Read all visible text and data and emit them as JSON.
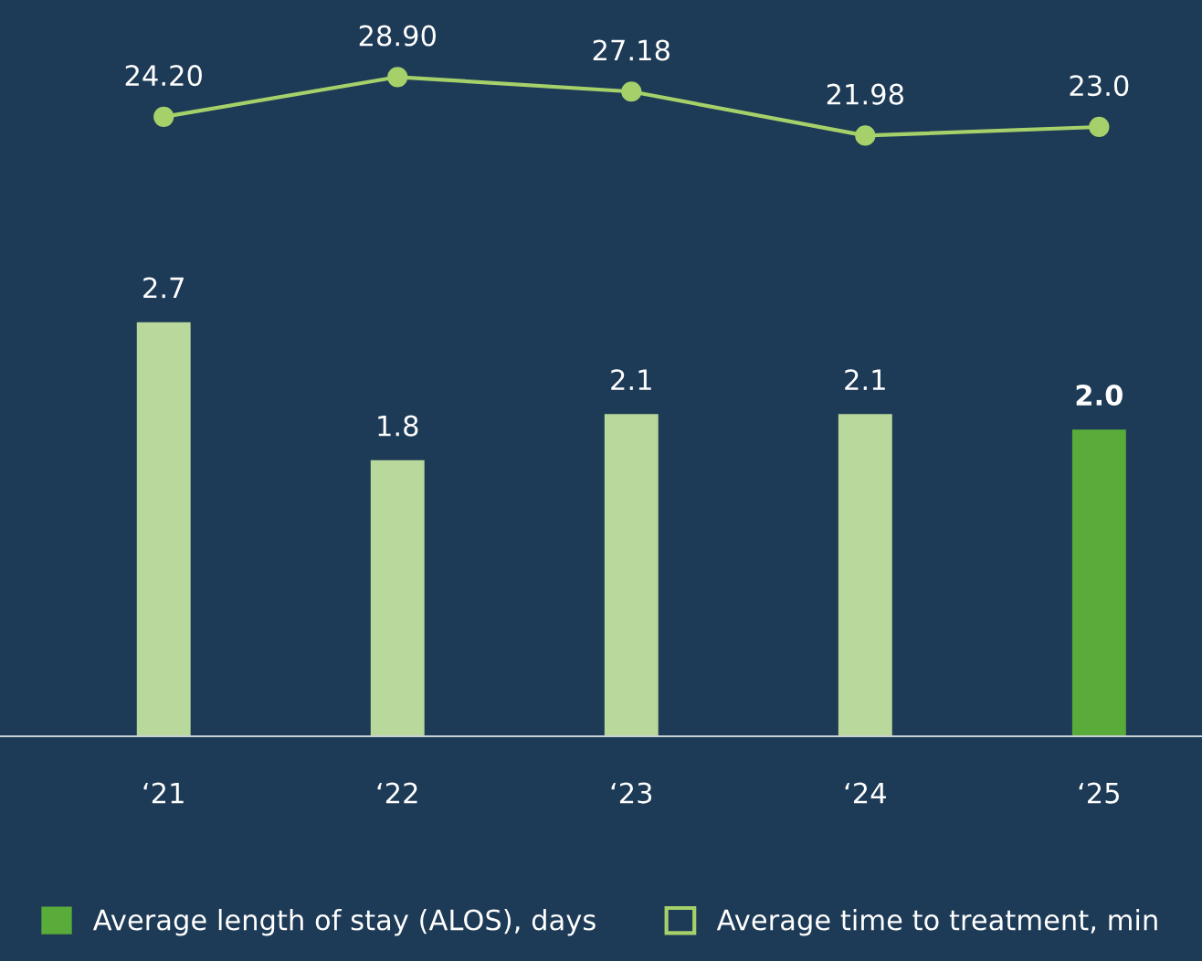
{
  "chart_data": {
    "type": "bar",
    "categories": [
      "‘21",
      "‘22",
      "‘23",
      "‘24",
      "‘25"
    ],
    "series": [
      {
        "name": "Average length of stay (ALOS), days",
        "colors": [
          "#b9d89b",
          "#b9d89b",
          "#b9d89b",
          "#b9d89b",
          "#5aac3a"
        ],
        "color": "#5aac3a",
        "values": [
          2.7,
          1.8,
          2.1,
          2.1,
          2.0
        ],
        "value_labels": [
          "2.7",
          "1.8",
          "2.1",
          "2.1",
          "2.0"
        ]
      },
      {
        "type": "line",
        "axis": "y2",
        "name": "Average time to treatment, min",
        "color": "#a6d16a",
        "values": [
          24.2,
          28.9,
          27.18,
          21.98,
          23.0
        ],
        "value_labels": [
          "24.20",
          "28.90",
          "27.18",
          "21.98",
          "23.0"
        ]
      }
    ],
    "ylim": [
      0,
      4.8
    ],
    "y2lim": [
      -49,
      38
    ],
    "tick_labels": "x",
    "legend": "bottom",
    "marker": "circle",
    "grid": false
  }
}
